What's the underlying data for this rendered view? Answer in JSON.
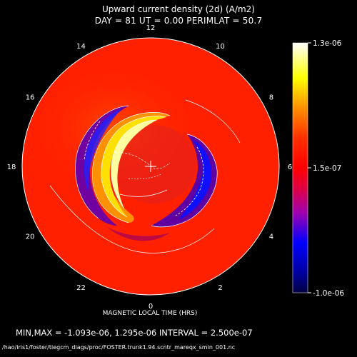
{
  "header": {
    "title": "Upward current density (2d) (A/m2)",
    "subtitle": "DAY =  81   UT =  0.00   PERIMLAT =  50.7"
  },
  "footer": {
    "stats": "MIN,MAX = -1.093e-06, 1.295e-06 INTERVAL =  2.500e-07",
    "file": "/hao/iris1/foster/tiegcm_diags/proc/FOSTER.trunk1.94.scntr_mareqx_smin_001.nc"
  },
  "chart_data": {
    "type": "heatmap",
    "projection": "polar",
    "title": "Upward current density (2d) (A/m2)",
    "subtitle": "DAY =  81   UT =  0.00   PERIMLAT =  50.7",
    "xlabel": "MAGNETIC LOCAL TIME (HRS)",
    "mlt_ticks": [
      "12",
      "10",
      "8",
      "6",
      "4",
      "2",
      "0",
      "22",
      "20",
      "18",
      "16",
      "14"
    ],
    "mlt_values": [
      12,
      10,
      8,
      6,
      4,
      2,
      0,
      22,
      20,
      18,
      16,
      14
    ],
    "colorbar": {
      "min": -1e-06,
      "max": 1.3e-06,
      "labels": [
        "1.3e-06",
        "1.5e-07",
        "-1.0e-06"
      ],
      "label_values": [
        1.3e-06,
        1.5e-07,
        -1e-06
      ],
      "colors": [
        "#ffffff",
        "#ffff00",
        "#ff8000",
        "#ff0000",
        "#e00020",
        "#c00080",
        "#0000ff",
        "#000060"
      ]
    },
    "min": -1.093e-06,
    "max": 1.295e-06,
    "interval": 2.5e-07
  }
}
